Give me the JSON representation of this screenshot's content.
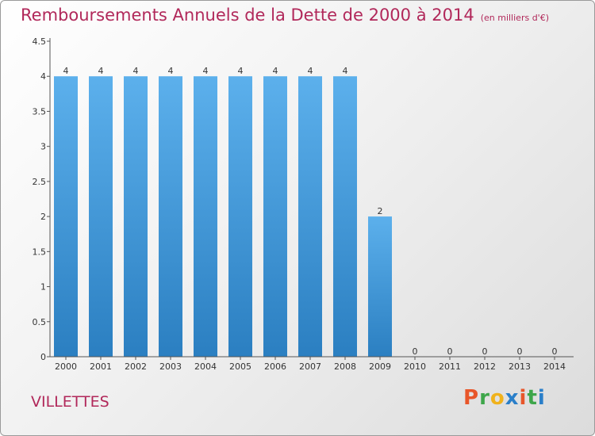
{
  "header": {
    "title": "Remboursements Annuels de la Dette de 2000 à 2014",
    "subtitle": "(en milliers d'€)"
  },
  "footer": {
    "city": "VILLETTES",
    "brand_letters": [
      "P",
      "r",
      "o",
      "x",
      "i",
      "t",
      "i"
    ],
    "brand_colors": [
      "#e8562a",
      "#3ea64a",
      "#f0b21c",
      "#2a7fc9",
      "#e8562a",
      "#3ea64a",
      "#2a7fc9"
    ]
  },
  "colors": {
    "bar_top": "#5cb0ec",
    "bar_bottom": "#2b7fc1",
    "axis": "#555555",
    "title": "#b1285a"
  },
  "chart_data": {
    "type": "bar",
    "title": "Remboursements Annuels de la Dette de 2000 à 2014",
    "subtitle": "(en milliers d'€)",
    "xlabel": "",
    "ylabel": "",
    "categories": [
      "2000",
      "2001",
      "2002",
      "2003",
      "2004",
      "2005",
      "2006",
      "2007",
      "2008",
      "2009",
      "2010",
      "2011",
      "2012",
      "2013",
      "2014"
    ],
    "values": [
      4,
      4,
      4,
      4,
      4,
      4,
      4,
      4,
      4,
      2,
      0,
      0,
      0,
      0,
      0
    ],
    "data_labels": [
      "4",
      "4",
      "4",
      "4",
      "4",
      "4",
      "4",
      "4",
      "4",
      "2",
      "0",
      "0",
      "0",
      "0",
      "0"
    ],
    "ylim": [
      0,
      4.5
    ],
    "y_ticks": [
      0,
      0.5,
      1,
      1.5,
      2,
      2.5,
      3,
      3.5,
      4,
      4.5
    ],
    "y_tick_labels": [
      "0",
      "0.5",
      "1",
      "1.5",
      "2",
      "2.5",
      "3",
      "3.5",
      "4",
      "4.5"
    ],
    "grid": false,
    "legend": "none"
  }
}
